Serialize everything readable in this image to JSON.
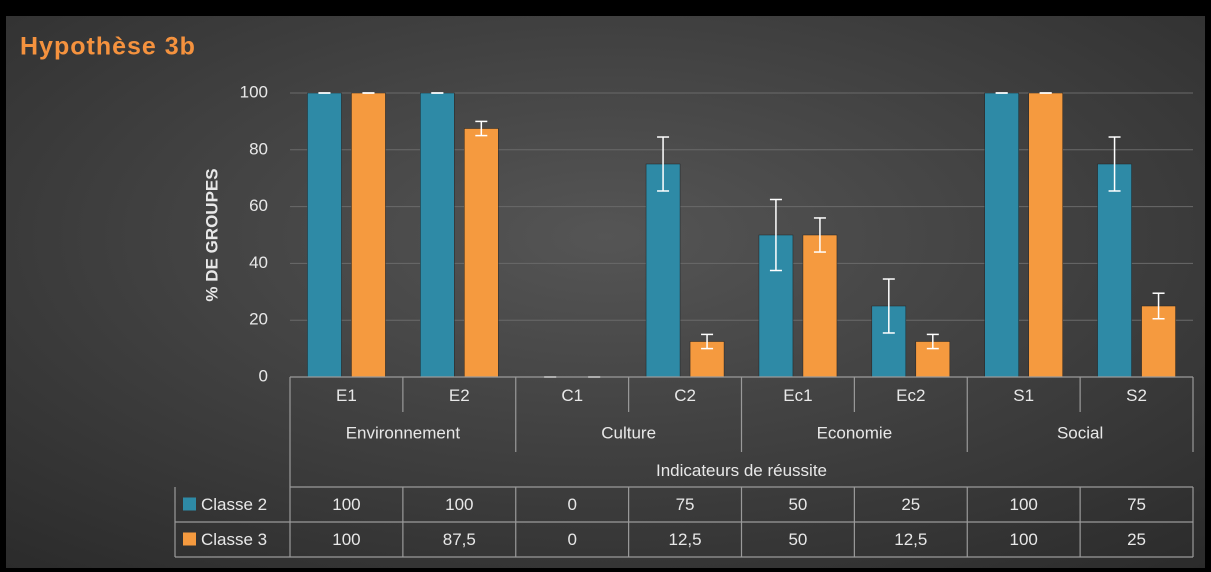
{
  "chart_data": {
    "type": "bar",
    "title": "Hypothèse 3b",
    "y_axis_label": "% DE GROUPES",
    "x_axis_label": "Indicateurs de réussite",
    "categories": [
      "E1",
      "E2",
      "C1",
      "C2",
      "Ec1",
      "Ec2",
      "S1",
      "S2"
    ],
    "groups": [
      "Environnement",
      "Culture",
      "Economie",
      "Social"
    ],
    "series": [
      {
        "name": "Classe 2",
        "color": "#2e8aa6",
        "values": [
          100,
          100,
          0,
          75,
          50,
          25,
          100,
          75
        ],
        "errors": [
          0,
          0,
          0,
          9.5,
          12.5,
          9.5,
          0,
          9.5
        ]
      },
      {
        "name": "Classe 3",
        "color": "#f59a3f",
        "values": [
          100,
          87.5,
          0,
          12.5,
          50,
          12.5,
          100,
          25
        ],
        "value_labels": [
          "100",
          "87,5",
          "0",
          "12,5",
          "50",
          "12,5",
          "100",
          "25"
        ],
        "errors": [
          0,
          2.5,
          0,
          2.5,
          6,
          2.5,
          0,
          4.5
        ]
      }
    ],
    "ylim": [
      0,
      100
    ],
    "yticks": [
      0,
      20,
      40,
      60,
      80,
      100
    ],
    "grid": true
  }
}
